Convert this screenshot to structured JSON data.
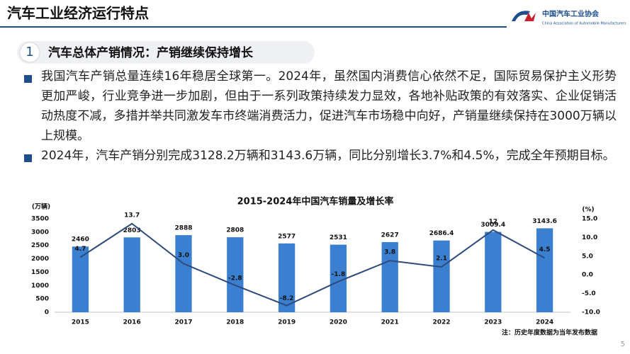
{
  "header": {
    "title": "汽车工业经济运行特点",
    "org_name": "中国汽车工业协会",
    "org_name_en": "China Association of Automobile Manufacturers"
  },
  "section": {
    "number": "1",
    "title": "汽车总体产销情况：产销继续保持增长"
  },
  "bullets": [
    "我国汽车产销总量连续16年稳居全球第一。2024年，虽然国内消费信心依然不足，国际贸易保护主义形势更加严峻，行业竞争进一步加剧，但由于一系列政策持续发力显效，各地补贴政策的有效落实、企业促销活动热度不减，多措并举共同激发车市终端消费活力，促进汽车市场稳中向好，产销量继续保持在3000万辆以上规模。",
    "2024年，汽车产销分别完成3128.2万辆和3143.6万辆，同比分别增长3.7%和4.5%，完成全年预期目标。"
  ],
  "page_number": "5",
  "chart_data": {
    "type": "bar-line",
    "title": "2015-2024年中国汽车销量及增长率",
    "y_label": "(万辆)",
    "y2_label": "(%)",
    "note": "注：历史年度数据为当年发布数据",
    "categories": [
      "2015",
      "2016",
      "2017",
      "2018",
      "2019",
      "2020",
      "2021",
      "2022",
      "2023",
      "2024"
    ],
    "series": [
      {
        "type": "bar",
        "color": "#3b7fd0",
        "values": [
          2460,
          2803,
          2888,
          2808,
          2577,
          2531,
          2627,
          2686.4,
          3009.4,
          3143.6
        ]
      },
      {
        "type": "line",
        "axis": "y2",
        "color": "#2e4a7a",
        "values": [
          4.7,
          13.7,
          3.0,
          -2.8,
          -8.2,
          -1.8,
          3.8,
          2.1,
          12,
          4.5
        ],
        "value_labels": [
          "4.7",
          "13.7",
          "3.0",
          "-2.8",
          "-8.2",
          "-1.8",
          "3.8",
          "2.1",
          "12",
          "4.5"
        ]
      }
    ],
    "ylim": [
      0,
      3500
    ],
    "yticks": [
      0,
      500,
      1000,
      1500,
      2000,
      2500,
      3000,
      3500
    ],
    "y2lim": [
      -10,
      15
    ],
    "y2ticks": [
      {
        "value": -10,
        "label": "-10.0"
      },
      {
        "value": -5,
        "label": "-5.0"
      },
      {
        "value": 0,
        "label": "0.0"
      },
      {
        "value": 5,
        "label": "5.0"
      },
      {
        "value": 10,
        "label": "10.0"
      },
      {
        "value": 15,
        "label": "15.0"
      }
    ],
    "grid": false
  }
}
